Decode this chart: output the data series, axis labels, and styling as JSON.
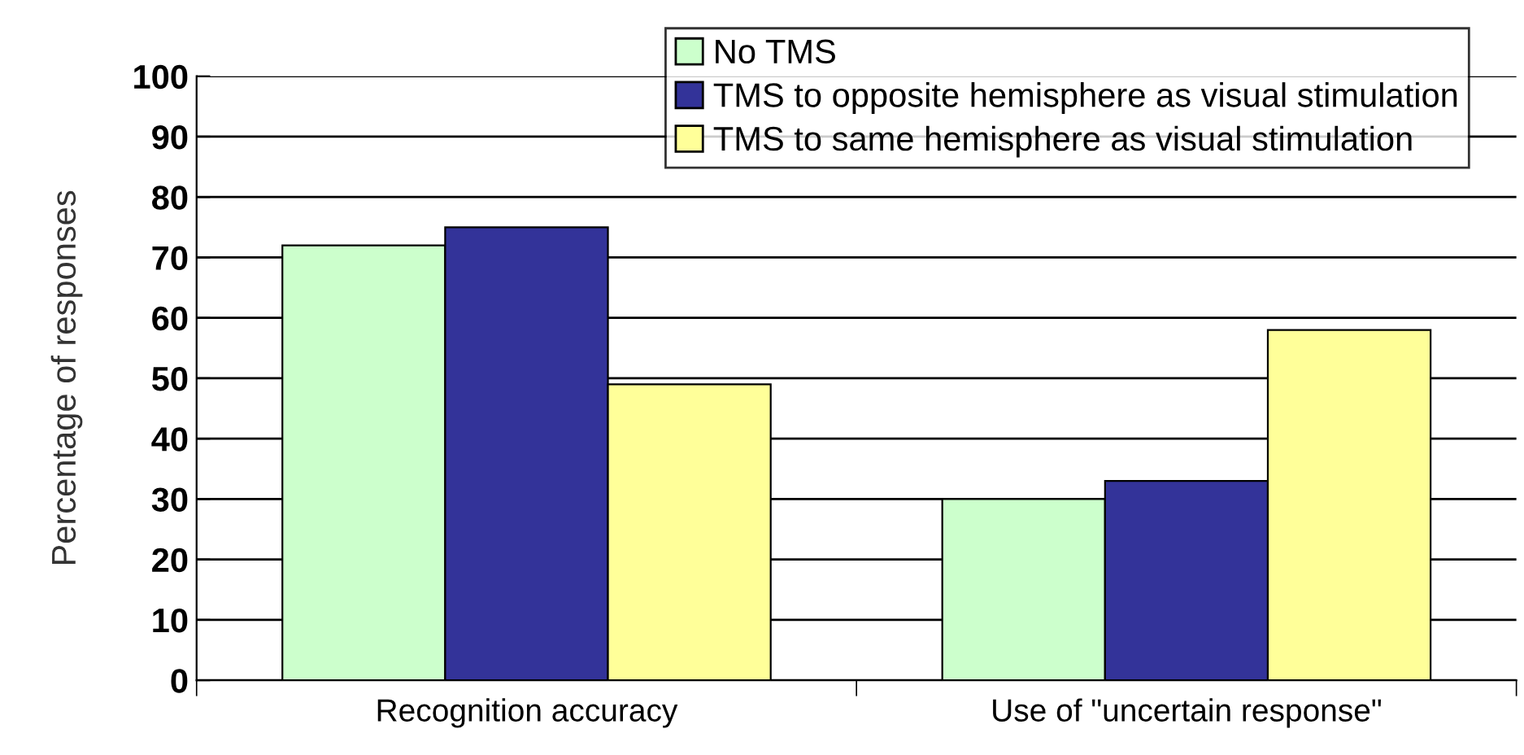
{
  "chart_data": {
    "type": "bar",
    "ylabel": "Percentage of responses",
    "categories": [
      "Recognition accuracy",
      "Use of \"uncertain response\""
    ],
    "series": [
      {
        "name": "No TMS",
        "color": "#ccffcc",
        "values": [
          72,
          30
        ]
      },
      {
        "name": "TMS to opposite hemisphere as visual stimulation",
        "color": "#333399",
        "values": [
          75,
          33
        ]
      },
      {
        "name": "TMS to same hemisphere as visual stimulation",
        "color": "#ffff99",
        "values": [
          49,
          58
        ]
      }
    ],
    "ylim": [
      0,
      100
    ],
    "yticks": [
      0,
      10,
      20,
      30,
      40,
      50,
      60,
      70,
      80,
      90,
      100
    ],
    "grid": "y",
    "legend": "top right"
  }
}
